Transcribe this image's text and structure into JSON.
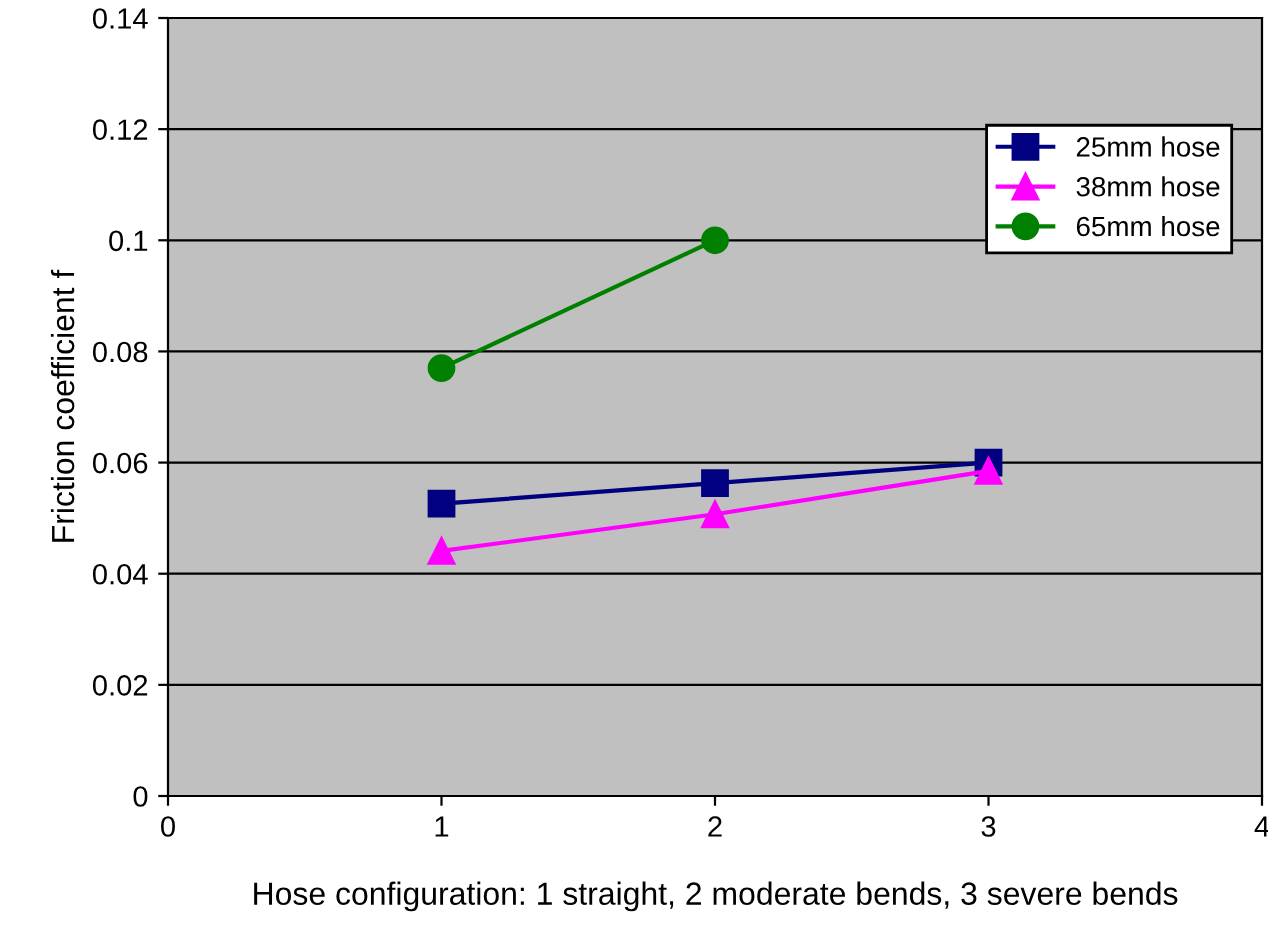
{
  "chart_data": {
    "type": "line",
    "xlabel": "Hose configuration: 1 straight, 2 moderate bends, 3 severe bends",
    "ylabel": "Friction coefficient f",
    "x": [
      1,
      2,
      3
    ],
    "series": [
      {
        "name": "25mm hose",
        "color": "#000080",
        "marker": "square",
        "values": [
          0.0526,
          0.0563,
          0.06
        ]
      },
      {
        "name": "38mm hose",
        "color": "#ff00ff",
        "marker": "triangle",
        "values": [
          0.0441,
          0.0507,
          0.0585
        ]
      },
      {
        "name": "65mm hose",
        "color": "#008000",
        "marker": "circle",
        "values": [
          0.077,
          0.1,
          null
        ]
      }
    ],
    "xlim": [
      0,
      4
    ],
    "xticks": [
      0,
      1,
      2,
      3,
      4
    ],
    "ylim": [
      0,
      0.14
    ],
    "yticks": [
      0,
      0.02,
      0.04,
      0.06,
      0.08,
      0.1,
      0.12,
      0.14
    ],
    "grid": "y",
    "legend": "top right",
    "line_style": "solid"
  }
}
